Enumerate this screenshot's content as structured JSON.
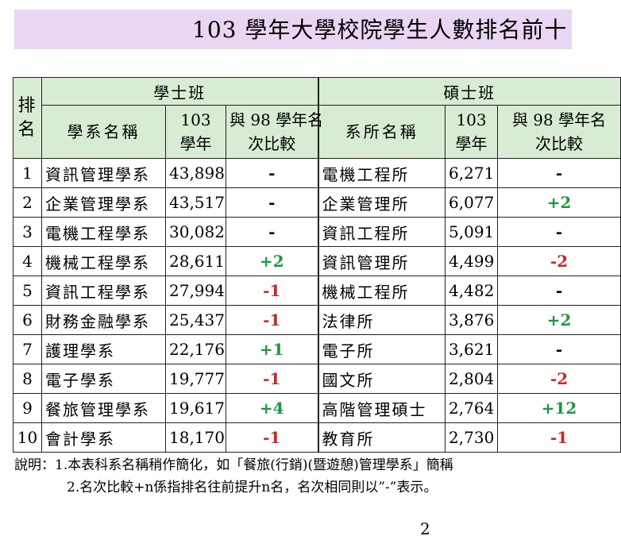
{
  "title": "103 學年大學校院學生人數排名前十",
  "header": {
    "rank_label": "排名",
    "bachelor_label": "學士班",
    "master_label": "碩士班",
    "bachelor_cols": [
      "學系名稱",
      "103學年",
      "與 98 學年名次比較"
    ],
    "master_cols": [
      "系所名稱",
      "103學年",
      "與 98 學年名次比較"
    ]
  },
  "rows": [
    {
      "rank": "1",
      "b_name": "資訊管理學系",
      "b_count": "43,898",
      "b_change": "-",
      "m_name": "電機工程所",
      "m_count": "6,271",
      "m_change": "-"
    },
    {
      "rank": "2",
      "b_name": "企業管理學系",
      "b_count": "43,517",
      "b_change": "-",
      "m_name": "企業管理所",
      "m_count": "6,077",
      "m_change": "+2"
    },
    {
      "rank": "3",
      "b_name": "電機工程學系",
      "b_count": "30,082",
      "b_change": "-",
      "m_name": "資訊工程所",
      "m_count": "5,091",
      "m_change": "-"
    },
    {
      "rank": "4",
      "b_name": "機械工程學系",
      "b_count": "28,611",
      "b_change": "+2",
      "m_name": "資訊管理所",
      "m_count": "4,499",
      "m_change": "-2"
    },
    {
      "rank": "5",
      "b_name": "資訊工程學系",
      "b_count": "27,994",
      "b_change": "-1",
      "m_name": "機械工程所",
      "m_count": "4,482",
      "m_change": "-"
    },
    {
      "rank": "6",
      "b_name": "財務金融學系",
      "b_count": "25,437",
      "b_change": "-1",
      "m_name": "法律所",
      "m_count": "3,876",
      "m_change": "+2"
    },
    {
      "rank": "7",
      "b_name": "護理學系",
      "b_count": "22,176",
      "b_change": "+1",
      "m_name": "電子所",
      "m_count": "3,621",
      "m_change": "-"
    },
    {
      "rank": "8",
      "b_name": "電子學系",
      "b_count": "19,777",
      "b_change": "-1",
      "m_name": "國文所",
      "m_count": "2,804",
      "m_change": "-2"
    },
    {
      "rank": "9",
      "b_name": "餐旅管理學系",
      "b_count": "19,617",
      "b_change": "+4",
      "m_name": "高階管理碩士",
      "m_count": "2,764",
      "m_change": "+12"
    },
    {
      "rank": "10",
      "b_name": "會計學系",
      "b_count": "18,170",
      "b_change": "-1",
      "m_name": "教育所",
      "m_count": "2,730",
      "m_change": "-1"
    }
  ],
  "colors": {
    "title_bg": "#e8d6f2",
    "header_bg": "#d8ecd3",
    "up": "#1a9a3a",
    "down": "#c62828"
  },
  "notes": {
    "line1": "說明：1.本表科系名稱稍作簡化，如「餐旅(行銷)(暨遊憩)管理學系」簡稱",
    "line2": "2.名次比較+n係指排名往前提升n名，名次相同則以”-”表示。"
  },
  "page_number": "2"
}
